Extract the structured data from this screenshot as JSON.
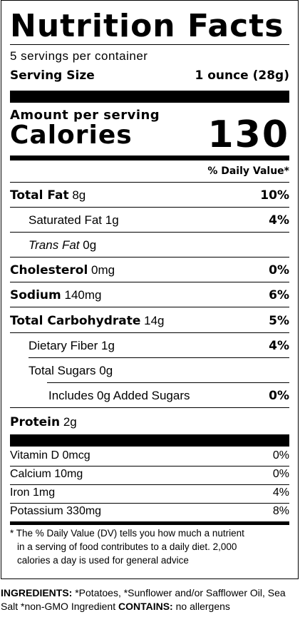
{
  "title": "Nutrition Facts",
  "servings_per_container": "5 servings per container",
  "serving_size": {
    "label": "Serving Size",
    "value": "1 ounce (28g)"
  },
  "amount_per_serving": "Amount per serving",
  "calories": {
    "label": "Calories",
    "value": "130"
  },
  "daily_value_header": "% Daily Value*",
  "nutrients": [
    {
      "name": "Total Fat",
      "amount": "8g",
      "dv": "10%"
    },
    {
      "name": "Saturated Fat",
      "amount": "1g",
      "dv": "4%"
    },
    {
      "name": "Trans",
      "name_suffix": "Fat",
      "amount": "0g",
      "dv": ""
    },
    {
      "name": "Cholesterol",
      "amount": "0mg",
      "dv": "0%"
    },
    {
      "name": "Sodium",
      "amount": "140mg",
      "dv": "6%"
    },
    {
      "name": "Total Carbohydrate",
      "amount": "14g",
      "dv": "5%"
    },
    {
      "name": "Dietary Fiber",
      "amount": "1g",
      "dv": "4%"
    },
    {
      "name": "Total Sugars",
      "amount": "0g",
      "dv": ""
    },
    {
      "name": "Includes 0g Added Sugars",
      "amount": "",
      "dv": "0%"
    },
    {
      "name": "Protein",
      "amount": "2g",
      "dv": ""
    }
  ],
  "vitamins": [
    {
      "name": "Vitamin D",
      "amount": "0mcg",
      "dv": "0%"
    },
    {
      "name": "Calcium",
      "amount": "10mg",
      "dv": "0%"
    },
    {
      "name": "Iron",
      "amount": "1mg",
      "dv": "4%"
    },
    {
      "name": "Potassium",
      "amount": "330mg",
      "dv": "8%"
    }
  ],
  "footnote": {
    "line1": "* The % Daily Value (DV) tells you how much a nutrient",
    "line2": "in a serving of food contributes to a daily diet. 2,000",
    "line3": "calories a day is used for general advice"
  },
  "ingredients": {
    "label": "INGREDIENTS:",
    "text": "*Potatoes, *Sunflower and/or Safflower Oil, Sea Salt *non-GMO Ingredient",
    "contains_label": "CONTAINS:",
    "contains_text": "no allergens"
  }
}
